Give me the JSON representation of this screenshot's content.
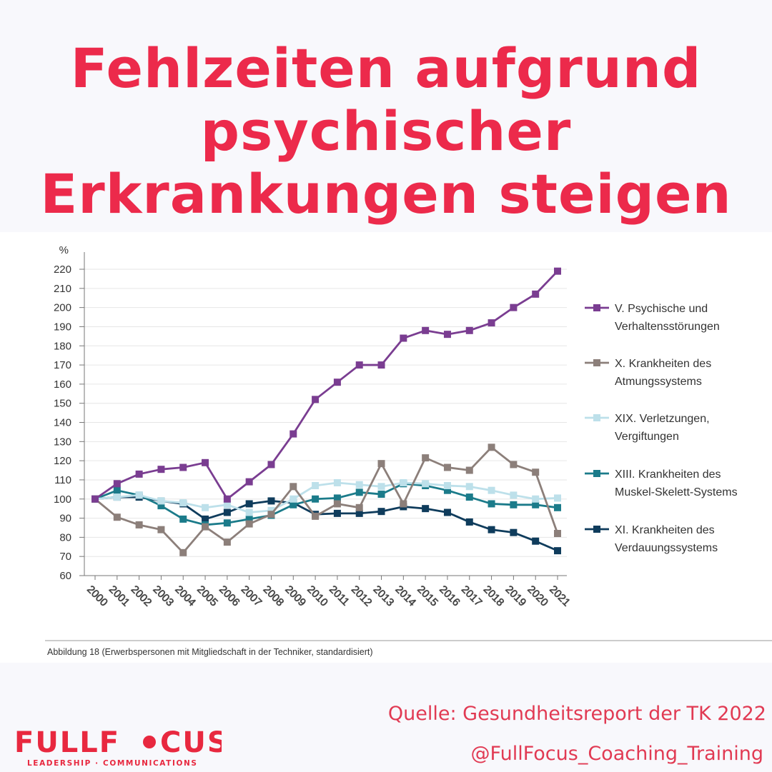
{
  "headline": {
    "line1": "Fehlzeiten aufgrund",
    "line2": "psychischer",
    "line3": "Erkrankungen steigen"
  },
  "chart_data": {
    "type": "line",
    "title": "",
    "xlabel": "",
    "ylabel": "%",
    "ylim": [
      60,
      220
    ],
    "yticks": [
      "60",
      "70",
      "80",
      "90",
      "100",
      "110",
      "120",
      "130",
      "140",
      "150",
      "160",
      "170",
      "180",
      "190",
      "200",
      "210",
      "220"
    ],
    "grid": true,
    "legend_position": "right",
    "x": [
      "2000",
      "2001",
      "2002",
      "2003",
      "2004",
      "2005",
      "2006",
      "2007",
      "2008",
      "2009",
      "2010",
      "2011",
      "2012",
      "2013",
      "2014",
      "2015",
      "2016",
      "2017",
      "2018",
      "2019",
      "2020",
      "2021"
    ],
    "series": [
      {
        "name": "V. Psychische und Verhaltensstörungen",
        "name_lines": [
          "V. Psychische und",
          "Verhaltensstörungen"
        ],
        "color": "#7a3d91",
        "values": [
          100,
          108,
          113,
          115.5,
          116.5,
          119,
          100,
          109,
          118,
          134,
          152,
          161,
          170,
          170,
          184,
          188,
          186,
          188,
          192,
          200,
          207,
          219
        ]
      },
      {
        "name": "X. Krankheiten des Atmungssystems",
        "name_lines": [
          "X. Krankheiten des",
          "Atmungssystems"
        ],
        "color": "#8c7f7a",
        "values": [
          100,
          90.5,
          86.5,
          84,
          72,
          85.5,
          77.5,
          87,
          92,
          106.5,
          91,
          97.5,
          95.5,
          118.5,
          97.5,
          121.5,
          116.5,
          115,
          127,
          118,
          114,
          82
        ]
      },
      {
        "name": "XIX. Verletzungen, Vergiftungen",
        "name_lines": [
          "XIX. Verletzungen,",
          "Vergiftungen"
        ],
        "color": "#bde0ea",
        "values": [
          100,
          101,
          102,
          99,
          98,
          95.5,
          97,
          93,
          94,
          100,
          107,
          108.5,
          107.5,
          106.5,
          108.5,
          108,
          107,
          106.5,
          104.5,
          102,
          100,
          100.5
        ]
      },
      {
        "name": "XIII. Krankheiten des Muskel-Skelett-Systems",
        "name_lines": [
          "XIII. Krankheiten des",
          "Muskel-Skelett-Systems"
        ],
        "color": "#1b7b8a",
        "values": [
          100,
          104.5,
          102,
          96.5,
          89.5,
          86.5,
          87.5,
          89.5,
          91.5,
          97,
          100,
          100.5,
          103.5,
          102.5,
          108,
          107,
          104.5,
          101,
          97.5,
          97,
          97,
          95.5
        ]
      },
      {
        "name": "XI. Krankheiten des Verdauungssystems",
        "name_lines": [
          "XI. Krankheiten des",
          "Verdauungssystems"
        ],
        "color": "#0f3c5c",
        "values": [
          100,
          101,
          101,
          99,
          97.5,
          89.5,
          93,
          97.5,
          99,
          98,
          92,
          92.5,
          92.5,
          93.5,
          96,
          95,
          93,
          88,
          84,
          82.5,
          78,
          73
        ]
      }
    ]
  },
  "caption": "Abbildung 18 (Erwerbspersonen mit Mitgliedschaft in der Techniker, standardisiert)",
  "source": "Quelle: Gesundheitsreport der TK 2022",
  "handle": "@FullFocus_Coaching_Training",
  "logo": {
    "wordmark": "FULLFOCUS",
    "tagline": "LEADERSHIP · COMMUNICATIONS",
    "color": "#e8283f"
  },
  "colors": {
    "headline": "#ec2a4b",
    "accent_text": "#e13a53"
  }
}
